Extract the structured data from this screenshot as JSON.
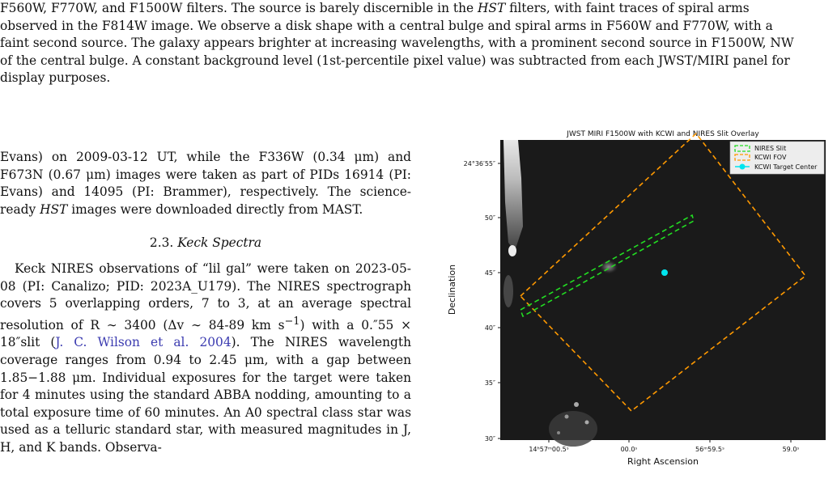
{
  "caption": {
    "line1": "F560W, F770W, and F1500W filters.  The source is barely discernible in the ",
    "line1_em": "HST",
    "line1_tail": " filters, with faint traces of spiral arms",
    "line2": "observed in the F814W image. We observe a disk shape with a central bulge and spiral arms in F560W and F770W, with a",
    "line3": "faint second source. The galaxy appears brighter at increasing wavelengths, with a prominent second source in F1500W, NW",
    "line4": "of the central bulge. A constant background level (1st-percentile pixel value) was subtracted from each JWST/MIRI panel for",
    "line5": "display purposes."
  },
  "body": {
    "para1_a": "Evans) on 2009-03-12 UT, while the F336W (0.34 μm) and F673N (0.67 μm) images were taken as part of PIDs 16914 (PI: Evans) and 14095 (PI: Brammer), respectively. The science-ready ",
    "para1_em": "HST",
    "para1_b": " images were downloaded directly from MAST.",
    "section_num": "2.3.",
    "section_title": "Keck Spectra",
    "para2_a": "Keck NIRES observations of “lil gal” were taken on 2023-05-08 (PI: Canalizo; PID: 2023A_U179).   The NIRES spectrograph covers 5 overlapping orders, 7 to 3, at an average spectral resolution of R ∼ 3400 (Δv ∼ 84-89 km s",
    "para2_sup": "−1",
    "para2_b": ") with a 0.″55 × 18″slit (",
    "para2_cite": "J. C. Wilson et al. 2004",
    "para2_c": ").  The NIRES wavelength coverage ranges from 0.94 to 2.45 μm, with a gap between 1.85−1.88 μm. Individual exposures for the target were taken for 4 minutes using the standard ABBA nodding, amounting to a total exposure time of 60 minutes.  An A0 spectral class star was used as a telluric standard star, with measured magnitudes in J, H, and K bands.  Observa-"
  },
  "figure": {
    "title": "JWST MIRI F1500W with KCWI and NIRES Slit Overlay",
    "xlabel": "Right Ascension",
    "ylabel": "Declination",
    "yticks": [
      "24°36′55″",
      "50″",
      "45″",
      "40″",
      "35″",
      "30″"
    ],
    "xticks": [
      "14ʰ57ᵐ00.5ˢ",
      "00.0ˢ",
      "56ᵐ59.5ˢ",
      "59.0ˢ"
    ],
    "legend": [
      "NIRES Slit",
      "KCWI FOV",
      "KCWI Target Center"
    ],
    "colors": {
      "nires": "#22dd22",
      "kcwi": "#ff9900",
      "target": "#00e5ee",
      "background": "#1a1a1a"
    }
  }
}
